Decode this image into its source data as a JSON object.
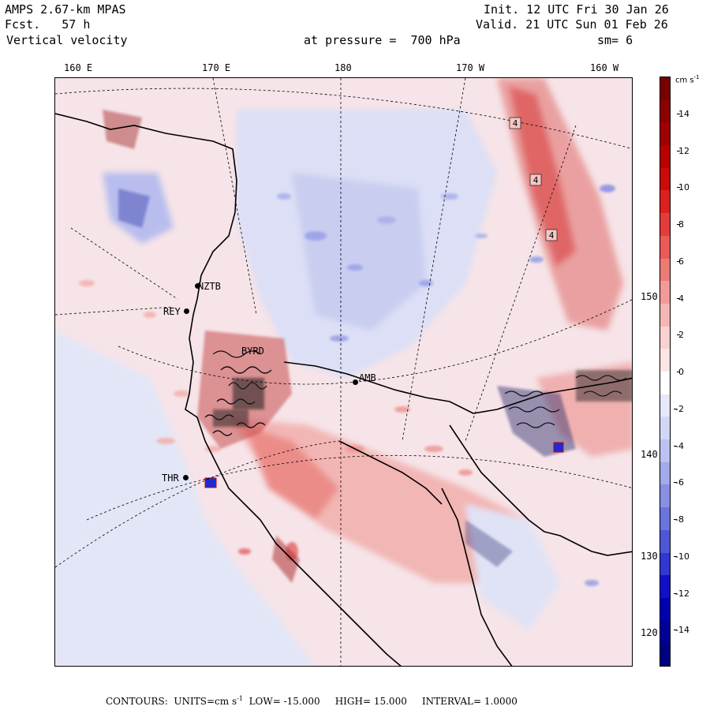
{
  "header": {
    "model": "AMPS 2.67-km MPAS",
    "fcst_label": "Fcst.",
    "fcst_value": "57 h",
    "field": "Vertical velocity",
    "init": "Init. 12 UTC Fri 30 Jan 26",
    "valid": "Valid. 21 UTC Sun 01 Feb 26",
    "pressure_label": "at pressure =",
    "pressure_value": "700 hPa",
    "smoothing": "sm= 6"
  },
  "longitude_labels": [
    "160 E",
    "170 E",
    "180",
    "170 W",
    "160 W"
  ],
  "latitude_labels": [
    "150 W",
    "140 W",
    "130 W",
    "120 W"
  ],
  "stations": [
    "NZTB",
    "REY",
    "BYRD",
    "AMB",
    "THR"
  ],
  "contour_labels": [
    "4",
    "4",
    "4"
  ],
  "colorbar": {
    "units": "cm s",
    "units_exp": "-1",
    "tick_labels": [
      "14",
      "12",
      "10",
      "8",
      "6",
      "4",
      "2",
      "0",
      "-2",
      "-4",
      "-6",
      "-8",
      "-10",
      "-12",
      "-14"
    ],
    "colors": [
      "#7a0000",
      "#8c0000",
      "#a00000",
      "#b80000",
      "#cc0a0a",
      "#dc2020",
      "#e43c3c",
      "#ea5a58",
      "#ee7a76",
      "#f29a96",
      "#f5b7b4",
      "#f8d2d0",
      "#fbe6e5",
      "#ffffff",
      "#e6e8fb",
      "#d3d7f6",
      "#bcc2f0",
      "#a2aaea",
      "#8890e4",
      "#6a74dc",
      "#4d57d6",
      "#3038d0",
      "#1010c8",
      "#0000b0",
      "#000098",
      "#000080"
    ]
  },
  "footer": {
    "contours": "CONTOURS:",
    "units": "UNITS=cm s",
    "units_exp": "-1",
    "low": "LOW= -15.000",
    "high": "HIGH= 15.000",
    "interval": "INTERVAL= 1.0000"
  }
}
